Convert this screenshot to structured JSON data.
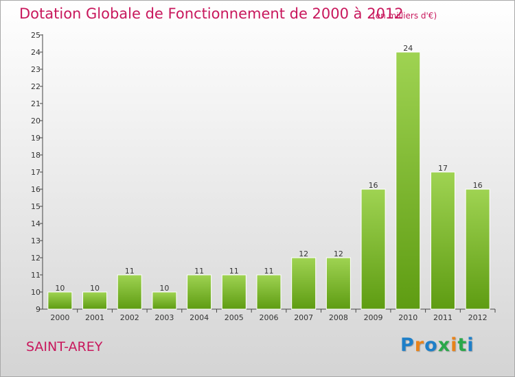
{
  "header": {
    "title": "Dotation Globale de Fonctionnement de 2000 à 2012",
    "subtitle": "(en milliers d'€)"
  },
  "footer": {
    "commune": "SAINT-AREY",
    "logo_text": "Proxiti",
    "logo_colors": [
      "#1e7fc8",
      "#e8831a",
      "#1e7fc8",
      "#2aa84a",
      "#e8831a",
      "#2aa84a",
      "#1e7fc8"
    ]
  },
  "chart_data": {
    "type": "bar",
    "categories": [
      "2000",
      "2001",
      "2002",
      "2003",
      "2004",
      "2005",
      "2006",
      "2007",
      "2008",
      "2009",
      "2010",
      "2011",
      "2012"
    ],
    "values": [
      10,
      10,
      11,
      10,
      11,
      11,
      11,
      12,
      12,
      16,
      24,
      17,
      16
    ],
    "title": "Dotation Globale de Fonctionnement de 2000 à 2012",
    "ylim": [
      9,
      25
    ],
    "yticks": [
      9,
      10,
      11,
      12,
      13,
      14,
      15,
      16,
      17,
      18,
      19,
      20,
      21,
      22,
      23,
      24,
      25
    ],
    "grid": false,
    "legend": "none",
    "bar_color_top": "#9fd352",
    "bar_color_bottom": "#5e9c12",
    "data_labels": true
  }
}
